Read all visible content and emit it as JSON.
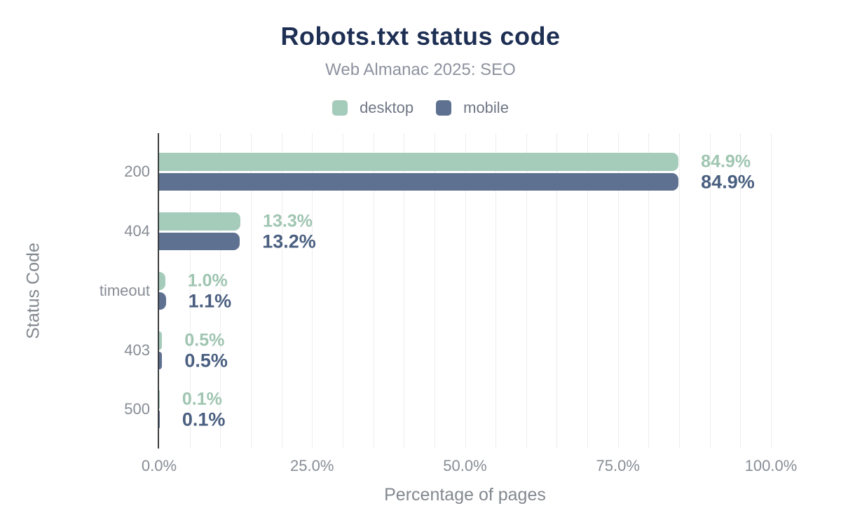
{
  "legend": [
    {
      "label": "desktop",
      "color": "#a5cbba"
    },
    {
      "label": "mobile",
      "color": "#5f7190"
    }
  ],
  "chart_data": {
    "type": "bar",
    "orientation": "horizontal",
    "title": "Robots.txt status code",
    "subtitle": "Web Almanac 2025: SEO",
    "xlabel": "Percentage of pages",
    "ylabel": "Status Code",
    "xlim": [
      0,
      100
    ],
    "x_tick_labels": [
      "0.0%",
      "25.0%",
      "50.0%",
      "75.0%",
      "100.0%"
    ],
    "grid_step": 5,
    "grid": "vertical",
    "legend_position": "top",
    "categories": [
      "200",
      "404",
      "timeout",
      "403",
      "500"
    ],
    "series": [
      {
        "name": "desktop",
        "color": "#a5cbba",
        "label_color": "#9fc5b1",
        "values": [
          84.9,
          13.3,
          1.0,
          0.5,
          0.1
        ],
        "value_labels": [
          "84.9%",
          "13.3%",
          "1.0%",
          "0.5%",
          "0.1%"
        ]
      },
      {
        "name": "mobile",
        "color": "#5f7190",
        "label_color": "#4a5f80",
        "values": [
          84.9,
          13.2,
          1.1,
          0.5,
          0.1
        ],
        "value_labels": [
          "84.9%",
          "13.2%",
          "1.1%",
          "0.5%",
          "0.1%"
        ]
      }
    ]
  },
  "colors": {
    "title": "#1e2f54",
    "subtitle": "#8c929e",
    "axis_text": "#878d96",
    "axis_title": "#82888f",
    "axis_line": "#3b3c3e",
    "gridline": "#ededed",
    "background": "#ffffff"
  }
}
